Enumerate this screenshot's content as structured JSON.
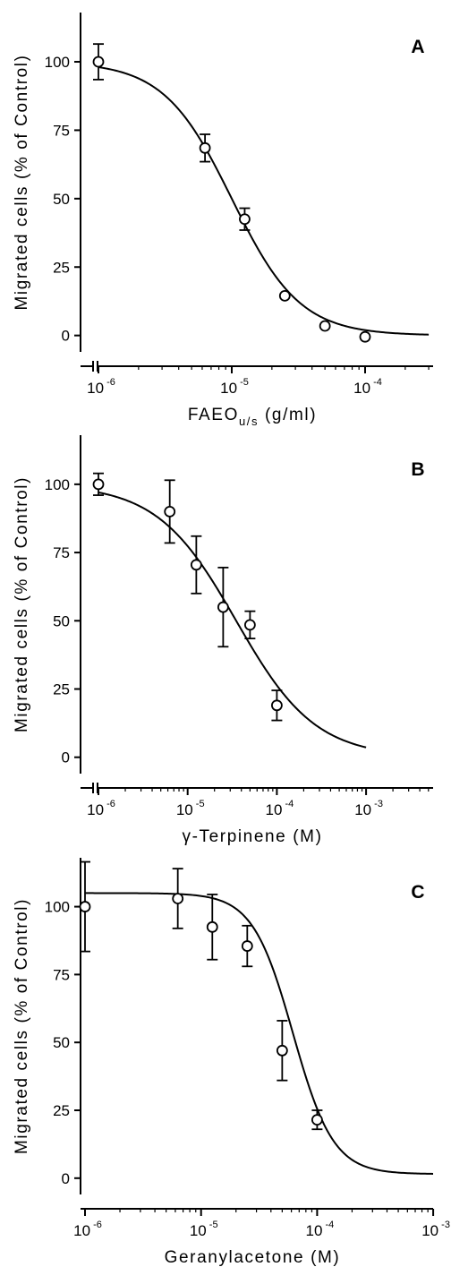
{
  "chart_data": [
    {
      "type": "scatter",
      "panel": "A",
      "xlabel": "FAEO",
      "xlabel_sub": "u/s",
      "xlabel_unit": " (g/ml)",
      "ylabel": "Migrated cells (% of Control)",
      "x_scale": "log",
      "xlim": [
        1e-06,
        0.0003
      ],
      "ylim": [
        -6,
        118
      ],
      "x_ticks": [
        {
          "value": 1e-06,
          "base": "10",
          "exp": "-6"
        },
        {
          "value": 1e-05,
          "base": "10",
          "exp": "-5"
        },
        {
          "value": 0.0001,
          "base": "10",
          "exp": "-4"
        }
      ],
      "y_ticks": [
        {
          "value": 0,
          "label": "0"
        },
        {
          "value": 25,
          "label": "25"
        },
        {
          "value": 50,
          "label": "50"
        },
        {
          "value": 75,
          "label": "75"
        },
        {
          "value": 100,
          "label": "100"
        }
      ],
      "points": [
        {
          "x": 1e-06,
          "y": 100,
          "err": 6.5
        },
        {
          "x": 6.3e-06,
          "y": 68.5,
          "err": 5
        },
        {
          "x": 1.25e-05,
          "y": 42.5,
          "err": 4
        },
        {
          "x": 2.5e-05,
          "y": 14.5,
          "err": 0
        },
        {
          "x": 5e-05,
          "y": 3.5,
          "err": 0
        },
        {
          "x": 0.0001,
          "y": -0.5,
          "err": 0
        }
      ],
      "fit": {
        "top": 100,
        "bottom": 0,
        "ic50": 1e-05,
        "hill": 1.7,
        "x_start": 1e-06,
        "x_end": 0.0003
      },
      "axis_break": true
    },
    {
      "type": "scatter",
      "panel": "B",
      "xlabel": "γ-Terpinene",
      "xlabel_sub": "",
      "xlabel_unit": " (M)",
      "ylabel": "Migrated cells (% of Control)",
      "x_scale": "log",
      "xlim": [
        1e-06,
        0.001
      ],
      "ylim": [
        -6,
        118
      ],
      "x_ticks": [
        {
          "value": 1e-06,
          "base": "10",
          "exp": "-6"
        },
        {
          "value": 1e-05,
          "base": "10",
          "exp": "-5"
        },
        {
          "value": 0.0001,
          "base": "10",
          "exp": "-4"
        },
        {
          "value": 0.001,
          "base": "10",
          "exp": "-3"
        }
      ],
      "y_ticks": [
        {
          "value": 0,
          "label": "0"
        },
        {
          "value": 25,
          "label": "25"
        },
        {
          "value": 50,
          "label": "50"
        },
        {
          "value": 75,
          "label": "75"
        },
        {
          "value": 100,
          "label": "100"
        }
      ],
      "points": [
        {
          "x": 1e-06,
          "y": 100,
          "err": 4
        },
        {
          "x": 6.3e-06,
          "y": 90,
          "err": 11.5
        },
        {
          "x": 1.25e-05,
          "y": 70.5,
          "err": 10.5
        },
        {
          "x": 2.5e-05,
          "y": 55,
          "err": 14.5
        },
        {
          "x": 5e-05,
          "y": 48.5,
          "err": 5
        },
        {
          "x": 0.0001,
          "y": 19,
          "err": 5.5
        }
      ],
      "fit": {
        "top": 100,
        "bottom": 0,
        "ic50": 3.5e-05,
        "hill": 0.98,
        "x_start": 1e-06,
        "x_end": 0.001
      },
      "axis_break": true
    },
    {
      "type": "scatter",
      "panel": "C",
      "xlabel": "Geranylacetone",
      "xlabel_sub": "",
      "xlabel_unit": " (M)",
      "ylabel": "Migrated cells (% of Control)",
      "x_scale": "log",
      "xlim": [
        1e-06,
        0.001
      ],
      "ylim": [
        -6,
        118
      ],
      "x_ticks": [
        {
          "value": 1e-06,
          "base": "10",
          "exp": "-6"
        },
        {
          "value": 1e-05,
          "base": "10",
          "exp": "-5"
        },
        {
          "value": 0.0001,
          "base": "10",
          "exp": "-4"
        },
        {
          "value": 0.001,
          "base": "10",
          "exp": "-3"
        }
      ],
      "y_ticks": [
        {
          "value": 0,
          "label": "0"
        },
        {
          "value": 25,
          "label": "25"
        },
        {
          "value": 50,
          "label": "50"
        },
        {
          "value": 75,
          "label": "75"
        },
        {
          "value": 100,
          "label": "100"
        }
      ],
      "points": [
        {
          "x": 1e-06,
          "y": 100,
          "err": 16.5
        },
        {
          "x": 6.3e-06,
          "y": 103,
          "err": 11
        },
        {
          "x": 1.25e-05,
          "y": 92.5,
          "err": 12
        },
        {
          "x": 2.5e-05,
          "y": 85.5,
          "err": 7.5
        },
        {
          "x": 5e-05,
          "y": 47,
          "err": 11
        },
        {
          "x": 0.0001,
          "y": 21.5,
          "err": 3.5
        }
      ],
      "fit": {
        "top": 105,
        "bottom": 1.5,
        "ic50": 6.2e-05,
        "hill": 2.5,
        "x_start": 1e-06,
        "x_end": 0.001
      },
      "axis_break": false
    }
  ]
}
